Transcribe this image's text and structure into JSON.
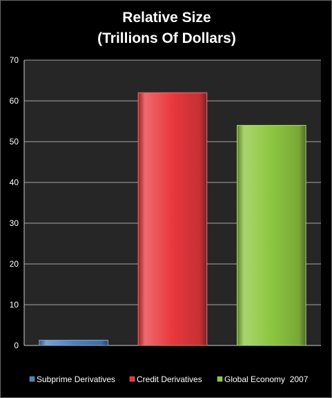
{
  "chart_data": {
    "type": "bar",
    "title_line1": "Relative Size",
    "title_line2": "(Trillions Of Dollars)",
    "categories": [
      "Subprime Derivatives",
      "Credit Derivatives",
      "Global Economy  2007"
    ],
    "values": [
      1.3,
      62,
      54
    ],
    "ylim": [
      0,
      70
    ],
    "yticks": [
      0,
      10,
      20,
      30,
      40,
      50,
      60,
      70
    ],
    "grid": true,
    "legend_position": "bottom",
    "colors": [
      "#4f81bd",
      "#e8383d",
      "#8dc63f"
    ],
    "plot_background": "#262626",
    "grid_color": "#a6a6a6"
  }
}
